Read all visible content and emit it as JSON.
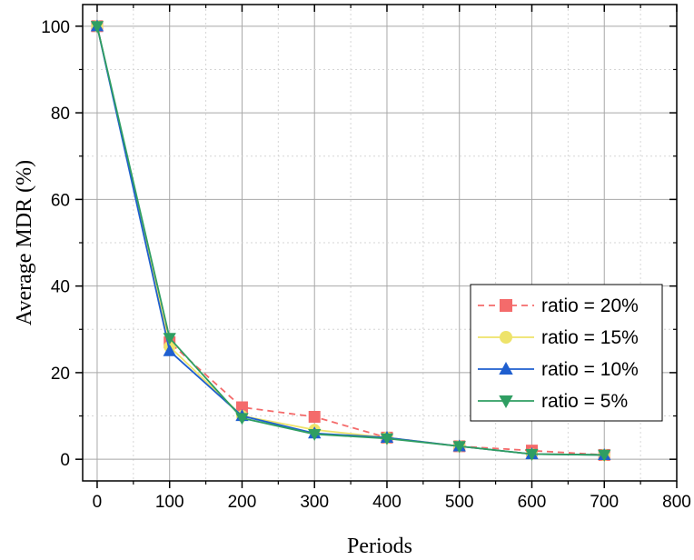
{
  "chart_data": {
    "type": "line",
    "title": "",
    "xlabel": "Periods",
    "ylabel": "Average MDR (%)",
    "xlim": [
      -20,
      800
    ],
    "ylim": [
      -5,
      105
    ],
    "x_ticks": [
      0,
      100,
      200,
      300,
      400,
      500,
      600,
      700,
      800
    ],
    "y_ticks": [
      0,
      20,
      40,
      60,
      80,
      100
    ],
    "x_tick_labels": [
      "0",
      "100",
      "200",
      "300",
      "400",
      "500",
      "600",
      "700",
      "800"
    ],
    "y_tick_labels": [
      "0",
      "20",
      "40",
      "60",
      "80",
      "100"
    ],
    "grid": true,
    "legend_position": "center-right",
    "x": [
      0,
      100,
      200,
      300,
      400,
      500,
      600,
      700
    ],
    "series": [
      {
        "name": "ratio = 20%",
        "color": "#f46b6b",
        "marker": "square",
        "dashed": true,
        "values": [
          100,
          27,
          12,
          9.8,
          5,
          3,
          2,
          1
        ]
      },
      {
        "name": "ratio = 15%",
        "color": "#eee36a",
        "marker": "circle",
        "dashed": false,
        "values": [
          100,
          26,
          10,
          6.8,
          5,
          3,
          1.2,
          1
        ]
      },
      {
        "name": "ratio = 10%",
        "color": "#1f5fcf",
        "marker": "triangle-up",
        "dashed": false,
        "values": [
          100,
          25,
          10,
          6,
          5,
          3,
          1.2,
          1
        ]
      },
      {
        "name": "ratio = 5%",
        "color": "#2f9e62",
        "marker": "triangle-down",
        "dashed": false,
        "values": [
          100,
          28,
          9.5,
          5.8,
          4.8,
          3,
          1.2,
          1
        ]
      }
    ]
  }
}
